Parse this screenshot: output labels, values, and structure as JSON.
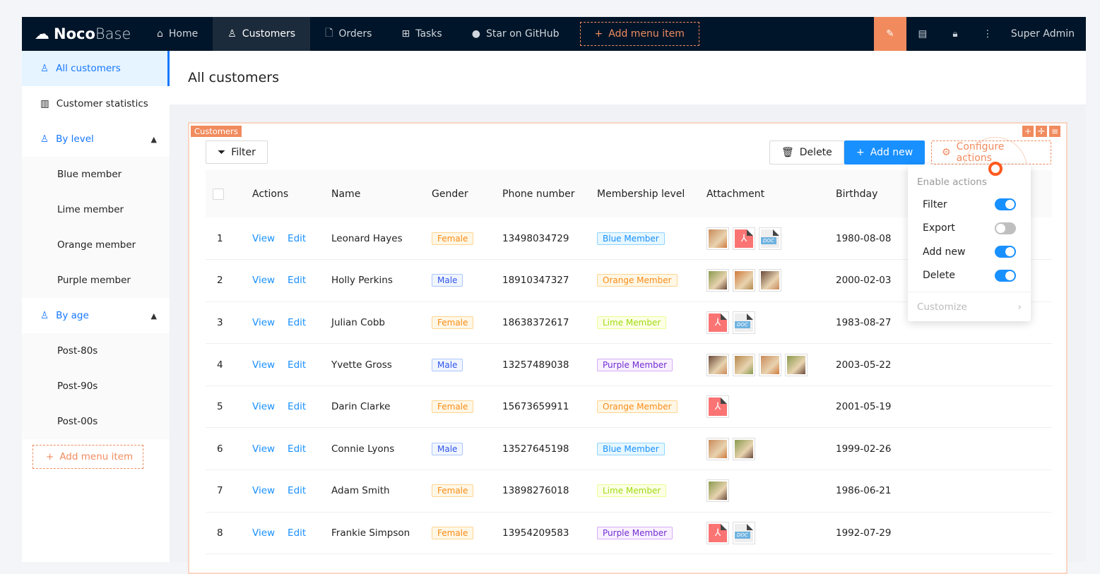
{
  "nav": {
    "logo_bold": "Noco",
    "logo_light": "Base",
    "items": [
      {
        "label": "Home",
        "icon": "home-icon"
      },
      {
        "label": "Customers",
        "icon": "users-icon",
        "active": true
      },
      {
        "label": "Orders",
        "icon": "file-plus-icon"
      },
      {
        "label": "Tasks",
        "icon": "grid-icon"
      },
      {
        "label": "Star on GitHub",
        "icon": "github-icon"
      }
    ],
    "add_menu": "Add menu item",
    "user": "Super Admin"
  },
  "sidebar": {
    "items": [
      {
        "label": "All customers",
        "type": "active"
      },
      {
        "label": "Customer statistics",
        "type": "plain"
      },
      {
        "label": "By level",
        "type": "group"
      },
      {
        "label": "Blue member",
        "type": "sub"
      },
      {
        "label": "Lime member",
        "type": "sub"
      },
      {
        "label": "Orange member",
        "type": "sub"
      },
      {
        "label": "Purple member",
        "type": "sub"
      },
      {
        "label": "By age",
        "type": "group"
      },
      {
        "label": "Post-80s",
        "type": "sub"
      },
      {
        "label": "Post-90s",
        "type": "sub"
      },
      {
        "label": "Post-00s",
        "type": "sub"
      }
    ],
    "add_menu": "Add menu item"
  },
  "page_title": "All customers",
  "card": {
    "tag": "Customers",
    "filter": "Filter",
    "delete": "Delete",
    "add_new": "Add new",
    "configure": "Configure actions"
  },
  "table": {
    "columns": [
      "Actions",
      "Name",
      "Gender",
      "Phone number",
      "Membership level",
      "Attachment",
      "Birthday"
    ],
    "view": "View",
    "edit": "Edit",
    "rows": [
      {
        "n": "1",
        "name": "Leonard Hayes",
        "gender": "Female",
        "phone": "13498034729",
        "level": "Blue Member",
        "att": [
          "img",
          "pdf",
          "doc"
        ],
        "birthday": "1980-08-08"
      },
      {
        "n": "2",
        "name": "Holly Perkins",
        "gender": "Male",
        "phone": "18910347327",
        "level": "Orange Member",
        "att": [
          "img",
          "img",
          "img"
        ],
        "birthday": "2000-02-03"
      },
      {
        "n": "3",
        "name": "Julian Cobb",
        "gender": "Female",
        "phone": "18638372617",
        "level": "Lime Member",
        "att": [
          "pdf",
          "doc"
        ],
        "birthday": "1983-08-27"
      },
      {
        "n": "4",
        "name": "Yvette Gross",
        "gender": "Male",
        "phone": "13257489038",
        "level": "Purple Member",
        "att": [
          "img",
          "img",
          "img",
          "img"
        ],
        "birthday": "2003-05-22"
      },
      {
        "n": "5",
        "name": "Darin Clarke",
        "gender": "Female",
        "phone": "15673659911",
        "level": "Orange Member",
        "att": [
          "pdf"
        ],
        "birthday": "2001-05-19"
      },
      {
        "n": "6",
        "name": "Connie Lyons",
        "gender": "Male",
        "phone": "13527645198",
        "level": "Blue Member",
        "att": [
          "img",
          "img"
        ],
        "birthday": "1999-02-26"
      },
      {
        "n": "7",
        "name": "Adam Smith",
        "gender": "Female",
        "phone": "13898276018",
        "level": "Lime Member",
        "att": [
          "img"
        ],
        "birthday": "1986-06-21"
      },
      {
        "n": "8",
        "name": "Frankie Simpson",
        "gender": "Female",
        "phone": "13954209583",
        "level": "Purple Member",
        "att": [
          "pdf",
          "doc"
        ],
        "birthday": "1992-07-29"
      }
    ]
  },
  "tag_colors": {
    "Female": [
      "#fa8c16",
      "#fff7e6",
      "#ffd591"
    ],
    "Male": [
      "#2f54eb",
      "#f0f5ff",
      "#adc6ff"
    ],
    "Blue Member": [
      "#1890ff",
      "#e6f7ff",
      "#91d5ff"
    ],
    "Orange Member": [
      "#fa8c16",
      "#fff7e6",
      "#ffd591"
    ],
    "Lime Member": [
      "#a0d911",
      "#fcffe6",
      "#eaff8f"
    ],
    "Purple Member": [
      "#722ed1",
      "#f9f0ff",
      "#d3adf7"
    ]
  },
  "doc_label": "DOC",
  "menu": {
    "title": "Enable actions",
    "items": [
      {
        "label": "Filter",
        "on": true
      },
      {
        "label": "Export",
        "on": false
      },
      {
        "label": "Add new",
        "on": true
      },
      {
        "label": "Delete",
        "on": true
      }
    ],
    "customize": "Customize"
  },
  "colors": {
    "accent": "#1890ff",
    "config": "#f18b5e",
    "nav_bg": "#001529"
  }
}
